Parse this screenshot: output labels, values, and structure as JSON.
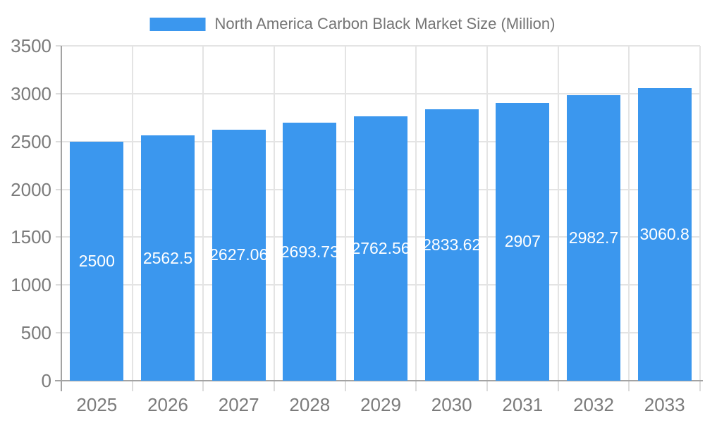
{
  "chart_data": {
    "type": "bar",
    "title": "North America Carbon Black Market Size (Million)",
    "legend_position": "top",
    "categories": [
      "2025",
      "2026",
      "2027",
      "2028",
      "2029",
      "2030",
      "2031",
      "2032",
      "2033"
    ],
    "series": [
      {
        "name": "North America Carbon Black Market Size (Million)",
        "values": [
          2500,
          2562.5,
          2627.06,
          2693.73,
          2762.56,
          2833.62,
          2907,
          2982.7,
          3060.8
        ],
        "bar_labels": [
          "2500",
          "2562.5",
          "2627.06",
          "2693.73",
          "2762.56",
          "2833.62",
          "2907",
          "2982.7",
          "3060.8"
        ]
      }
    ],
    "xlabel": "",
    "ylabel": "",
    "ylim": [
      0,
      3500
    ],
    "ytick_step": 500,
    "ytick_labels": [
      "0",
      "500",
      "1000",
      "1500",
      "2000",
      "2500",
      "3000",
      "3500"
    ],
    "grid": true,
    "colors": {
      "bar": "#3b97ee",
      "bar_label": "#ffffff",
      "axis_line": "#a3a3a3",
      "gridline": "#e4e4e4",
      "tick": "#dcdcdc",
      "tick_label": "#7b7b7b",
      "legend_text": "#757575"
    }
  }
}
